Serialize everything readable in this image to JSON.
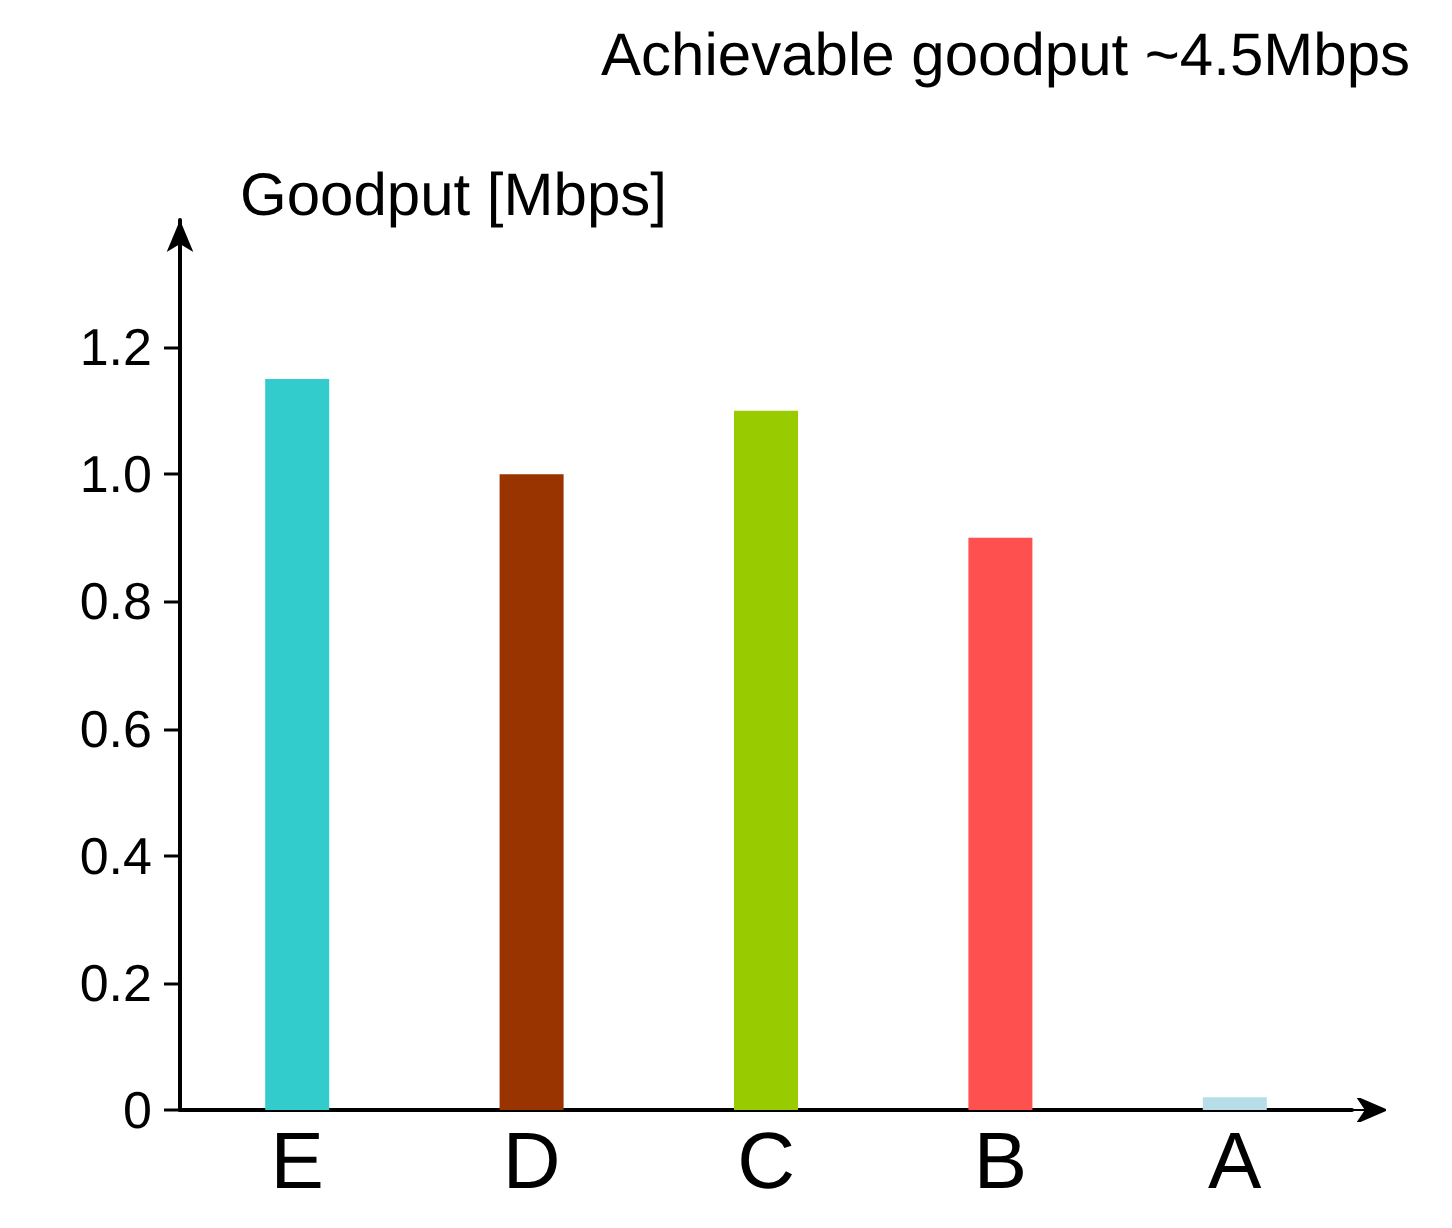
{
  "chart_data": {
    "type": "bar",
    "title": "Achievable goodput ~4.5Mbps",
    "ylabel": "Goodput [Mbps]",
    "categories": [
      "E",
      "D",
      "C",
      "B",
      "A"
    ],
    "values": [
      1.15,
      1.0,
      1.1,
      0.9,
      0.02
    ],
    "colors": [
      "#33cccc",
      "#993300",
      "#99cc00",
      "#ff5050",
      "#b7dde8"
    ],
    "ylim": [
      0,
      1.4
    ],
    "yticks": [
      0,
      0.2,
      0.4,
      0.6,
      0.8,
      {
        "value": 1,
        "label": "1.0"
      },
      1.2
    ],
    "grid": false
  }
}
